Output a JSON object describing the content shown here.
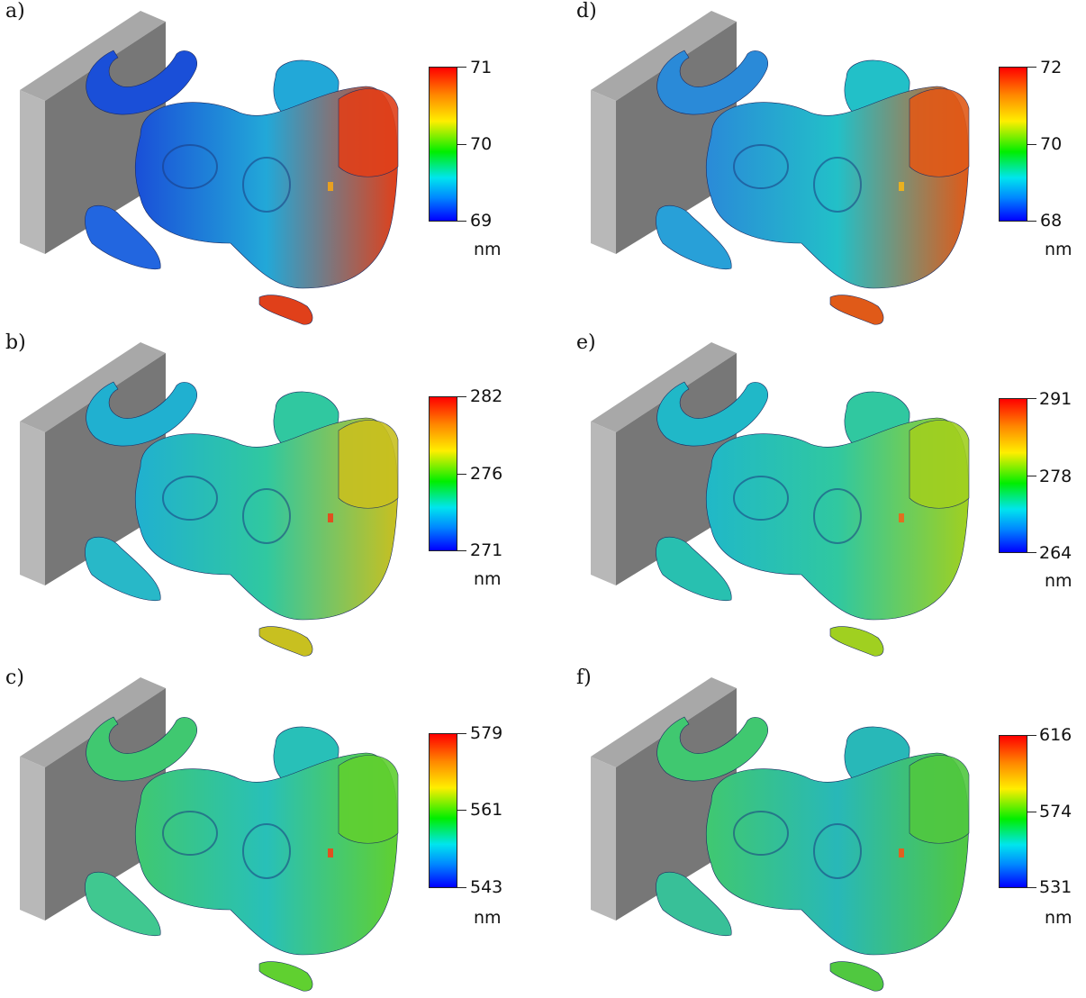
{
  "panels": [
    {
      "label": "a)",
      "max": "71",
      "mid": "70",
      "min": "69",
      "unit": "nm",
      "scheme": "a"
    },
    {
      "label": "b)",
      "max": "282",
      "mid": "276",
      "min": "271",
      "unit": "nm",
      "scheme": "b"
    },
    {
      "label": "c)",
      "max": "579",
      "mid": "561",
      "min": "543",
      "unit": "nm",
      "scheme": "c"
    },
    {
      "label": "d)",
      "max": "72",
      "mid": "70",
      "min": "68",
      "unit": "nm",
      "scheme": "d"
    },
    {
      "label": "e)",
      "max": "291",
      "mid": "278",
      "min": "264",
      "unit": "nm",
      "scheme": "e"
    },
    {
      "label": "f)",
      "max": "616",
      "mid": "574",
      "min": "531",
      "unit": "nm",
      "scheme": "f"
    }
  ]
}
